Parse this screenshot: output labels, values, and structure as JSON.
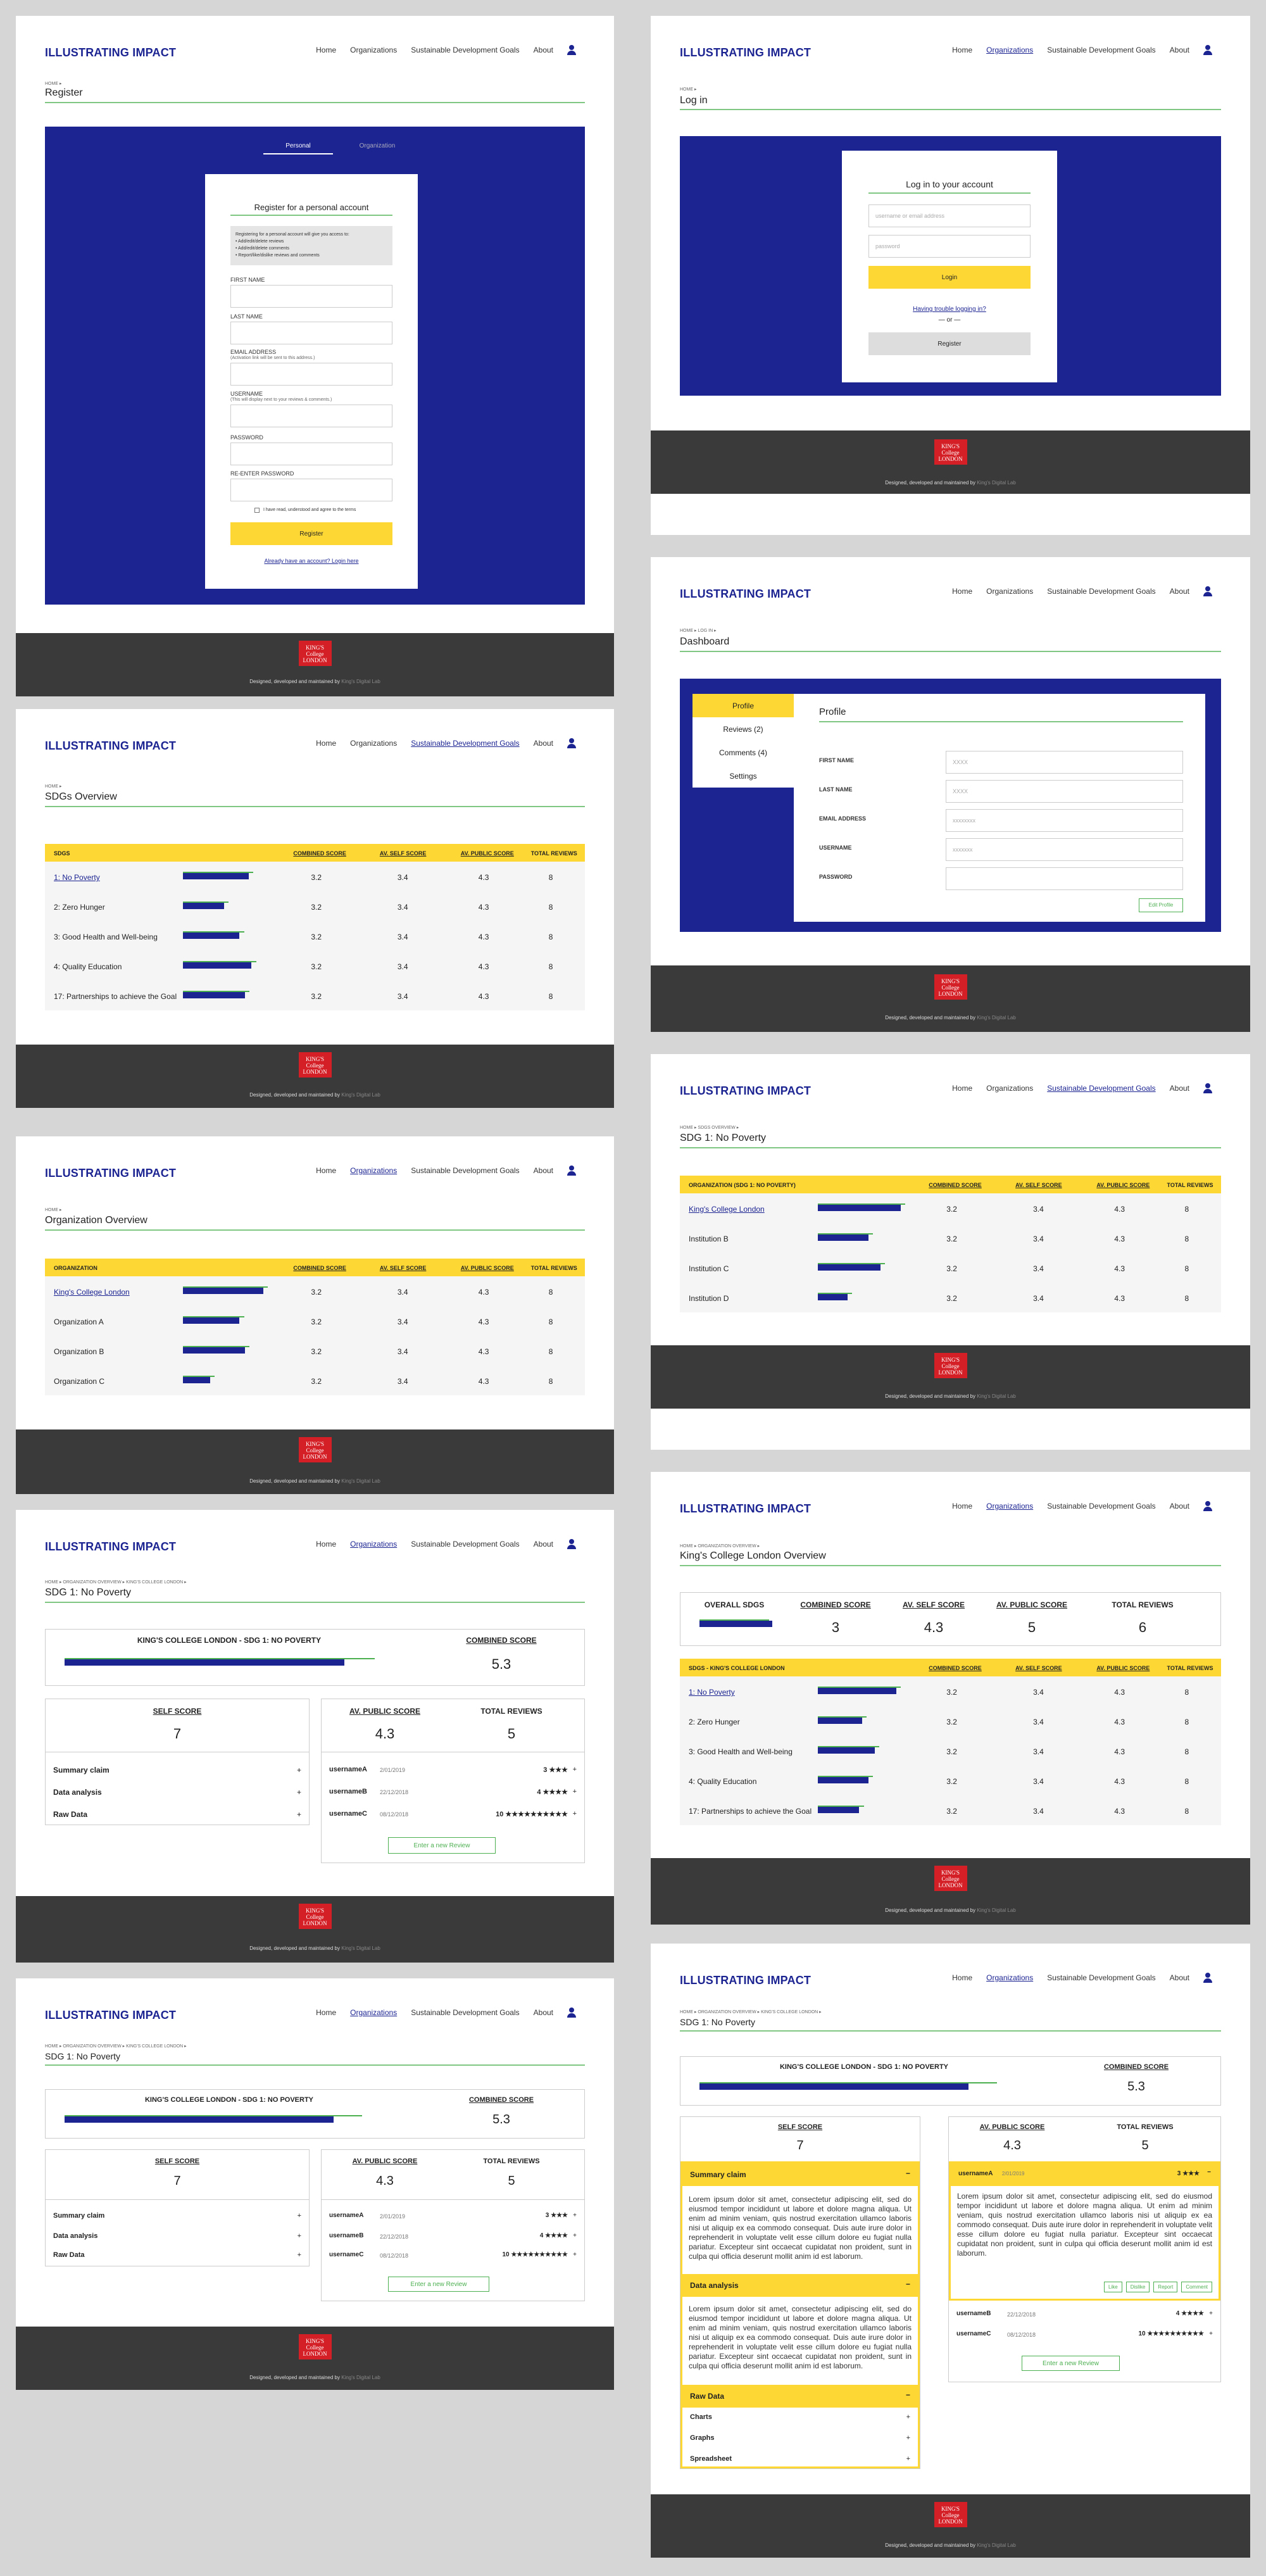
{
  "brand": "ILLUSTRATING IMPACT",
  "nav": {
    "home": "Home",
    "organizations": "Organizations",
    "sdgs": "Sustainable Development Goals",
    "about": "About"
  },
  "footer": {
    "logo": "KING'S College LONDON",
    "note_prefix": "Designed, developed and maintained by",
    "note_link": "King's Digital Lab"
  },
  "register": {
    "crumb": "HOME ▸",
    "title": "Register",
    "tab_personal": "Personal",
    "tab_org": "Organization",
    "card_title": "Register for a personal account",
    "info": [
      "Registering for a personal account will give you access to:",
      "• Add/edit/delete reviews",
      "• Add/edit/delete comments",
      "• Report/like/dislike reviews and comments"
    ],
    "first": "FIRST NAME",
    "last": "LAST NAME",
    "email": "EMAIL ADDRESS",
    "email_note": "(Activation link will be sent to this address.)",
    "username": "USERNAME",
    "username_note": "(This will display next to your reviews & comments.)",
    "password": "PASSWORD",
    "repassword": "RE-ENTER PASSWORD",
    "terms": "I have read, understood and agree to the terms",
    "submit": "Register",
    "login_link": "Already have an account? Login here"
  },
  "login": {
    "crumb": "HOME ▸",
    "title": "Log in",
    "card_title": "Log in to your account",
    "user_ph": "username or email address",
    "pass_ph": "password",
    "login_btn": "Login",
    "trouble": "Having trouble logging in?",
    "or": "— or —",
    "register_btn": "Register"
  },
  "dashboard": {
    "crumb": "HOME ▸ LOG IN ▸",
    "title": "Dashboard",
    "menu": [
      "Profile",
      "Reviews (2)",
      "Comments (4)",
      "Settings"
    ],
    "heading": "Profile",
    "fields": [
      {
        "label": "FIRST NAME",
        "value": "XXXX"
      },
      {
        "label": "LAST NAME",
        "value": "XXXX"
      },
      {
        "label": "EMAIL ADDRESS",
        "value": "xxxxxxxx"
      },
      {
        "label": "USERNAME",
        "value": "xxxxxxx"
      },
      {
        "label": "PASSWORD",
        "value": ""
      }
    ],
    "edit": "Edit Profile"
  },
  "sdgs": {
    "crumb": "HOME ▸",
    "title": "SDGs Overview",
    "headers": [
      "SDGS",
      "COMBINED SCORE",
      "AV. SELF SCORE",
      "AV. PUBLIC SCORE",
      "TOTAL REVIEWS"
    ],
    "rows": [
      {
        "name": "1: No Poverty",
        "combined": "3.2",
        "self": "3.4",
        "public": "4.3",
        "reviews": "8",
        "bar": 0.72
      },
      {
        "name": "2: Zero Hunger",
        "combined": "3.2",
        "self": "3.4",
        "public": "4.3",
        "reviews": "8",
        "bar": 0.45
      },
      {
        "name": "3: Good Health and Well-being",
        "combined": "3.2",
        "self": "3.4",
        "public": "4.3",
        "reviews": "8",
        "bar": 0.62
      },
      {
        "name": "4: Quality Education",
        "combined": "3.2",
        "self": "3.4",
        "public": "4.3",
        "reviews": "8",
        "bar": 0.75
      },
      {
        "name": "17: Partnerships to achieve the Goal",
        "combined": "3.2",
        "self": "3.4",
        "public": "4.3",
        "reviews": "8",
        "bar": 0.68
      }
    ]
  },
  "sdg1": {
    "crumb": "HOME ▸ SDGS OVERVIEW ▸",
    "title": "SDG 1: No Poverty",
    "headers": [
      "ORGANIZATION (SDG 1: NO POVERTY)",
      "COMBINED SCORE",
      "AV. SELF SCORE",
      "AV. PUBLIC SCORE",
      "TOTAL REVIEWS"
    ],
    "rows": [
      {
        "name": "King's College London",
        "combined": "3.2",
        "self": "3.4",
        "public": "4.3",
        "reviews": "8",
        "bar": 0.9
      },
      {
        "name": "Institution B",
        "combined": "3.2",
        "self": "3.4",
        "public": "4.3",
        "reviews": "8",
        "bar": 0.55
      },
      {
        "name": "Institution C",
        "combined": "3.2",
        "self": "3.4",
        "public": "4.3",
        "reviews": "8",
        "bar": 0.68
      },
      {
        "name": "Institution D",
        "combined": "3.2",
        "self": "3.4",
        "public": "4.3",
        "reviews": "8",
        "bar": 0.32
      }
    ]
  },
  "orgs": {
    "crumb": "HOME ▸",
    "title": "Organization Overview",
    "headers": [
      "ORGANIZATION",
      "COMBINED SCORE",
      "AV. SELF SCORE",
      "AV. PUBLIC SCORE",
      "TOTAL REVIEWS"
    ],
    "rows": [
      {
        "name": "King's College London",
        "combined": "3.2",
        "self": "3.4",
        "public": "4.3",
        "reviews": "8",
        "bar": 0.88
      },
      {
        "name": "Organization A",
        "combined": "3.2",
        "self": "3.4",
        "public": "4.3",
        "reviews": "8",
        "bar": 0.62
      },
      {
        "name": "Organization B",
        "combined": "3.2",
        "self": "3.4",
        "public": "4.3",
        "reviews": "8",
        "bar": 0.68
      },
      {
        "name": "Organization C",
        "combined": "3.2",
        "self": "3.4",
        "public": "4.3",
        "reviews": "8",
        "bar": 0.3
      }
    ]
  },
  "kcl": {
    "crumb": "HOME ▸ ORGANIZATION OVERVIEW ▸",
    "title": "King's College London Overview",
    "summary_headers": [
      "OVERALL SDGS",
      "COMBINED SCORE",
      "AV. SELF SCORE",
      "AV. PUBLIC SCORE",
      "TOTAL REVIEWS"
    ],
    "summary_values": [
      "3",
      "4.3",
      "5",
      "6"
    ],
    "headers": [
      "SDGS - KING'S COLLEGE LONDON",
      "COMBINED SCORE",
      "AV. SELF SCORE",
      "AV. PUBLIC SCORE",
      "TOTAL REVIEWS"
    ],
    "rows": [
      {
        "name": "1: No Poverty",
        "combined": "3.2",
        "self": "3.4",
        "public": "4.3",
        "reviews": "8",
        "bar": 0.85
      },
      {
        "name": "2: Zero Hunger",
        "combined": "3.2",
        "self": "3.4",
        "public": "4.3",
        "reviews": "8",
        "bar": 0.48
      },
      {
        "name": "3: Good Health and Well-being",
        "combined": "3.2",
        "self": "3.4",
        "public": "4.3",
        "reviews": "8",
        "bar": 0.62
      },
      {
        "name": "4: Quality Education",
        "combined": "3.2",
        "self": "3.4",
        "public": "4.3",
        "reviews": "8",
        "bar": 0.55
      },
      {
        "name": "17: Partnerships to achieve the Goal",
        "combined": "3.2",
        "self": "3.4",
        "public": "4.3",
        "reviews": "8",
        "bar": 0.45
      }
    ]
  },
  "detail": {
    "crumb": "HOME ▸ ORGANIZATION OVERVIEW ▸ KING'S COLLEGE LONDON ▸",
    "title": "SDG 1: No Poverty",
    "heading": "KING'S COLLEGE LONDON - SDG 1: NO POVERTY",
    "combined_label": "COMBINED SCORE",
    "combined": "5.3",
    "combined_bar": 0.85,
    "self_label": "SELF SCORE",
    "self": "7",
    "public_label": "AV. PUBLIC SCORE",
    "public": "4.3",
    "reviews_label": "TOTAL REVIEWS",
    "reviews": "5",
    "sections": [
      "Summary claim",
      "Data analysis",
      "Raw Data"
    ],
    "user_reviews": [
      {
        "user": "usernameA",
        "date": "2/01/2019",
        "score": "3 ★★★"
      },
      {
        "user": "usernameB",
        "date": "22/12/2018",
        "score": "4 ★★★★"
      },
      {
        "user": "usernameC",
        "date": "08/12/2018",
        "score": "10 ★★★★★★★★★★"
      }
    ],
    "new_review": "Enter a new Review",
    "plus": "+",
    "minus": "−",
    "lorem": "Lorem ipsum dolor sit amet, consectetur adipiscing elit, sed do eiusmod tempor incididunt ut labore et dolore magna aliqua. Ut enim ad minim veniam, quis nostrud exercitation ullamco laboris nisi ut aliquip ex ea commodo consequat. Duis aute irure dolor in reprehenderit in voluptate velit esse cillum dolore eu fugiat nulla pariatur. Excepteur sint occaecat cupidatat non proident, sunt in culpa qui officia deserunt mollit anim id est laborum.",
    "raw_items": [
      "Charts",
      "Graphs",
      "Spreadsheet"
    ],
    "actions": [
      "Like",
      "Dislike",
      "Report",
      "Comment"
    ]
  }
}
